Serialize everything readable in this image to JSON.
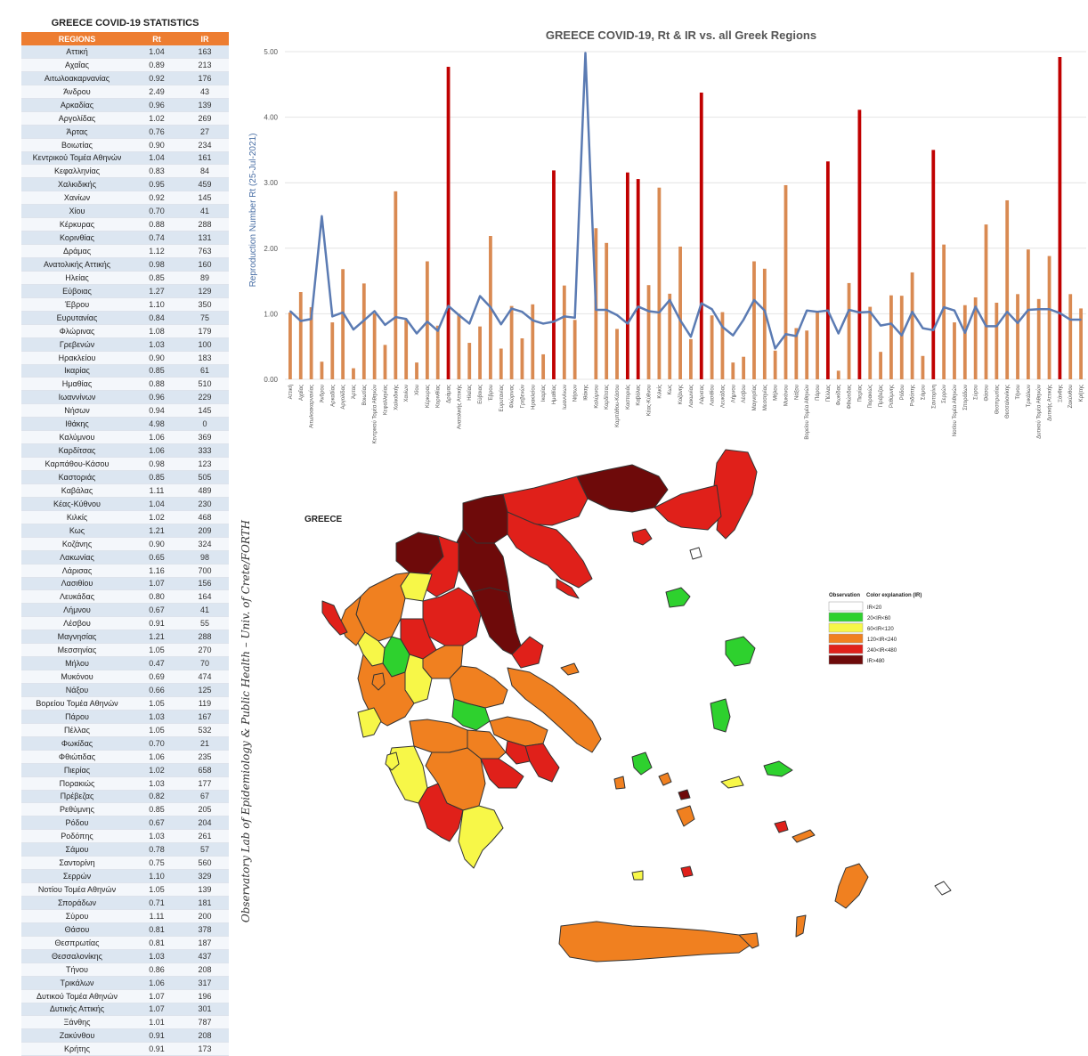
{
  "table": {
    "title": "GREECE COVID-19 STATISTICS",
    "headers": [
      "REGIONS",
      "Rt",
      "IR"
    ],
    "rows": [
      [
        "Αττική",
        "1.04",
        "163"
      ],
      [
        "Αχαΐας",
        "0.89",
        "213"
      ],
      [
        "Αιτωλοακαρνανίας",
        "0.92",
        "176"
      ],
      [
        "Άνδρου",
        "2.49",
        "43"
      ],
      [
        "Αρκαδίας",
        "0.96",
        "139"
      ],
      [
        "Αργολίδας",
        "1.02",
        "269"
      ],
      [
        "Άρτας",
        "0.76",
        "27"
      ],
      [
        "Βοιωτίας",
        "0.90",
        "234"
      ],
      [
        "Κεντρικού Τομέα Αθηνών",
        "1.04",
        "161"
      ],
      [
        "Κεφαλληνίας",
        "0.83",
        "84"
      ],
      [
        "Χαλκιδικής",
        "0.95",
        "459"
      ],
      [
        "Χανίων",
        "0.92",
        "145"
      ],
      [
        "Χίου",
        "0.70",
        "41"
      ],
      [
        "Κέρκυρας",
        "0.88",
        "288"
      ],
      [
        "Κορινθίας",
        "0.74",
        "131"
      ],
      [
        "Δράμας",
        "1.12",
        "763"
      ],
      [
        "Ανατολικής Αττικής",
        "0.98",
        "160"
      ],
      [
        "Ηλείας",
        "0.85",
        "89"
      ],
      [
        "Εύβοιας",
        "1.27",
        "129"
      ],
      [
        "Έβρου",
        "1.10",
        "350"
      ],
      [
        "Ευρυτανίας",
        "0.84",
        "75"
      ],
      [
        "Φλώρινας",
        "1.08",
        "179"
      ],
      [
        "Γρεβενών",
        "1.03",
        "100"
      ],
      [
        "Ηρακλείου",
        "0.90",
        "183"
      ],
      [
        "Ικαρίας",
        "0.85",
        "61"
      ],
      [
        "Ημαθίας",
        "0.88",
        "510"
      ],
      [
        "Ιωαννίνων",
        "0.96",
        "229"
      ],
      [
        "Νήσων",
        "0.94",
        "145"
      ],
      [
        "Ιθάκης",
        "4.98",
        "0"
      ],
      [
        "Καλύμνου",
        "1.06",
        "369"
      ],
      [
        "Καρδίτσας",
        "1.06",
        "333"
      ],
      [
        "Καρπάθου-Κάσου",
        "0.98",
        "123"
      ],
      [
        "Καστοριάς",
        "0.85",
        "505"
      ],
      [
        "Καβάλας",
        "1.11",
        "489"
      ],
      [
        "Κέας-Κύθνου",
        "1.04",
        "230"
      ],
      [
        "Κιλκίς",
        "1.02",
        "468"
      ],
      [
        "Κως",
        "1.21",
        "209"
      ],
      [
        "Κοζάνης",
        "0.90",
        "324"
      ],
      [
        "Λακωνίας",
        "0.65",
        "98"
      ],
      [
        "Λάρισας",
        "1.16",
        "700"
      ],
      [
        "Λασιθίου",
        "1.07",
        "156"
      ],
      [
        "Λευκάδας",
        "0.80",
        "164"
      ],
      [
        "Λήμνου",
        "0.67",
        "41"
      ],
      [
        "Λέσβου",
        "0.91",
        "55"
      ],
      [
        "Μαγνησίας",
        "1.21",
        "288"
      ],
      [
        "Μεσσηνίας",
        "1.05",
        "270"
      ],
      [
        "Μήλου",
        "0.47",
        "70"
      ],
      [
        "Μυκόνου",
        "0.69",
        "474"
      ],
      [
        "Νάξου",
        "0.66",
        "125"
      ],
      [
        "Βορείου Τομέα Αθηνών",
        "1.05",
        "119"
      ],
      [
        "Πάρου",
        "1.03",
        "167"
      ],
      [
        "Πέλλας",
        "1.05",
        "532"
      ],
      [
        "Φωκίδας",
        "0.70",
        "21"
      ],
      [
        "Φθιώτιδας",
        "1.06",
        "235"
      ],
      [
        "Πιερίας",
        "1.02",
        "658"
      ],
      [
        "Πορακιώς",
        "1.03",
        "177"
      ],
      [
        "Πρέβεζας",
        "0.82",
        "67"
      ],
      [
        "Ρεθύμνης",
        "0.85",
        "205"
      ],
      [
        "Ρόδου",
        "0.67",
        "204"
      ],
      [
        "Ροδόπης",
        "1.03",
        "261"
      ],
      [
        "Σάμου",
        "0.78",
        "57"
      ],
      [
        "Σαντορίνη",
        "0.75",
        "560"
      ],
      [
        "Σερρών",
        "1.10",
        "329"
      ],
      [
        "Νοτίου Τομέα Αθηνών",
        "1.05",
        "139"
      ],
      [
        "Σποράδων",
        "0.71",
        "181"
      ],
      [
        "Σύρου",
        "1.11",
        "200"
      ],
      [
        "Θάσου",
        "0.81",
        "378"
      ],
      [
        "Θεσπρωτίας",
        "0.81",
        "187"
      ],
      [
        "Θεσσαλονίκης",
        "1.03",
        "437"
      ],
      [
        "Τήνου",
        "0.86",
        "208"
      ],
      [
        "Τρικάλων",
        "1.06",
        "317"
      ],
      [
        "Δυτικού Τομέα Αθηνών",
        "1.07",
        "196"
      ],
      [
        "Δυτικής Αττικής",
        "1.07",
        "301"
      ],
      [
        "Ξάνθης",
        "1.01",
        "787"
      ],
      [
        "Ζακύνθου",
        "0.91",
        "208"
      ],
      [
        "Κρήτης",
        "0.91",
        "173"
      ]
    ]
  },
  "chart_data": {
    "type": "bar+line",
    "title": "GREECE COVID-19, Rt & IR vs. all Greek Regions",
    "ylabel": "Reproduction Number Rt (25-Jul-2021)",
    "ylim": [
      0,
      5
    ],
    "yticks": [
      "0.00",
      "1.00",
      "2.00",
      "3.00",
      "4.00",
      "5.00"
    ],
    "grid": true,
    "categories": [
      "Αττική",
      "Αχαΐας",
      "Αιτωλοακαρνανίας",
      "Άνδρου",
      "Αρκαδίας",
      "Αργολίδας",
      "Άρτας",
      "Βοιωτίας",
      "Κεντρικού Τομέα Αθηνών",
      "Κεφαλληνίας",
      "Χαλκιδικής",
      "Χανίων",
      "Χίου",
      "Κέρκυρας",
      "Κορινθίας",
      "Δράμας",
      "Ανατολικής Αττικής",
      "Ηλείας",
      "Εύβοιας",
      "Έβρου",
      "Ευρυτανίας",
      "Φλώρινας",
      "Γρεβενών",
      "Ηρακλείου",
      "Ικαρίας",
      "Ημαθίας",
      "Ιωαννίνων",
      "Νήσων",
      "Ιθάκης",
      "Καλύμνου",
      "Καρδίτσας",
      "Καρπάθου-Κάσου",
      "Καστοριάς",
      "Καβάλας",
      "Κέας-Κύθνου",
      "Κιλκίς",
      "Κως",
      "Κοζάνης",
      "Λακωνίας",
      "Λάρισας",
      "Λασιθίου",
      "Λευκάδας",
      "Λήμνου",
      "Λέσβου",
      "Μαγνησίας",
      "Μεσσηνίας",
      "Μήλου",
      "Μυκόνου",
      "Νάξου",
      "Βορείου Τομέα Αθηνών",
      "Πάρου",
      "Πέλλας",
      "Φωκίδας",
      "Φθιώτιδας",
      "Πιερίας",
      "Πορακιώς",
      "Πρέβεζας",
      "Ρεθύμνης",
      "Ρόδου",
      "Ροδόπης",
      "Σάμου",
      "Σαντορίνη",
      "Σερρών",
      "Νοτίου Τομέα Αθηνών",
      "Σποράδων",
      "Σύρου",
      "Θάσου",
      "Θεσπρωτίας",
      "Θεσσαλονίκης",
      "Τήνου",
      "Τρικάλων",
      "Δυτικού Τομέα Αθηνών",
      "Δυτικής Αττικής",
      "Ξάνθης",
      "Ζακύνθου",
      "Κρήτης"
    ],
    "series": [
      {
        "kind": "bar",
        "values": [
          163,
          213,
          176,
          43,
          139,
          269,
          27,
          234,
          161,
          84,
          459,
          145,
          41,
          288,
          131,
          763,
          160,
          89,
          129,
          350,
          75,
          179,
          100,
          183,
          61,
          510,
          229,
          145,
          0,
          369,
          333,
          123,
          505,
          489,
          230,
          468,
          209,
          324,
          98,
          700,
          156,
          164,
          41,
          55,
          288,
          270,
          70,
          474,
          125,
          119,
          167,
          532,
          21,
          235,
          658,
          177,
          67,
          205,
          204,
          261,
          57,
          560,
          329,
          139,
          181,
          200,
          378,
          187,
          437,
          208,
          317,
          196,
          301,
          787,
          208,
          173
        ]
      },
      {
        "kind": "line",
        "values": [
          1.04,
          0.89,
          0.92,
          2.49,
          0.96,
          1.02,
          0.76,
          0.9,
          1.04,
          0.83,
          0.95,
          0.92,
          0.7,
          0.88,
          0.74,
          1.12,
          0.98,
          0.85,
          1.27,
          1.1,
          0.84,
          1.08,
          1.03,
          0.9,
          0.85,
          0.88,
          0.96,
          0.94,
          4.98,
          1.06,
          1.06,
          0.98,
          0.85,
          1.11,
          1.04,
          1.02,
          1.21,
          0.9,
          0.65,
          1.16,
          1.07,
          0.8,
          0.67,
          0.91,
          1.21,
          1.05,
          0.47,
          0.69,
          0.66,
          1.05,
          1.03,
          1.05,
          0.7,
          1.06,
          1.02,
          1.03,
          0.82,
          0.85,
          0.67,
          1.03,
          0.78,
          0.75,
          1.1,
          1.05,
          0.71,
          1.11,
          0.81,
          0.81,
          1.03,
          0.86,
          1.06,
          1.07,
          1.07,
          1.01,
          0.91,
          0.91
        ]
      }
    ],
    "bar_colors": {
      "normal": "#d98a52",
      "high": "#c00000"
    }
  },
  "map": {
    "title": "GREECE",
    "legend_title_left": "Observation",
    "legend_title_right": "Color explanation (IR)",
    "legend_items": [
      {
        "label": "IR<20",
        "color": "#ffffff"
      },
      {
        "label": "20<IR<60",
        "color": "#2ed12e"
      },
      {
        "label": "60<IR<120",
        "color": "#f7f748"
      },
      {
        "label": "120<IR<240",
        "color": "#f08020"
      },
      {
        "label": "240<IR<480",
        "color": "#e0201a"
      },
      {
        "label": "IR>480",
        "color": "#6e0a0a"
      }
    ]
  },
  "credit": "Observatory Lab of Epidemiology & Public Health – Univ. of Crete/FORTH"
}
